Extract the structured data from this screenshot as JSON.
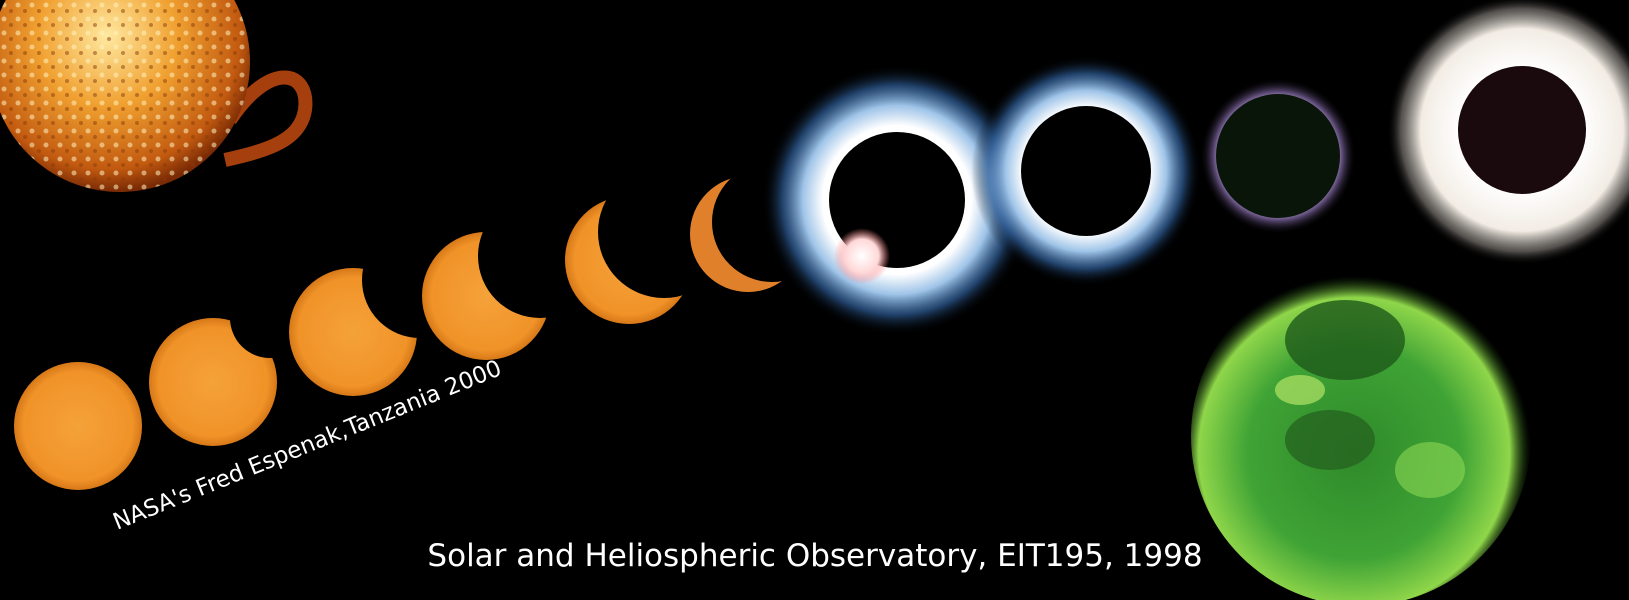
{
  "captions": {
    "photographer": "NASA's Fred Espenak,Tanzania 2000",
    "observatory": "Solar and Heliospheric Observatory, EIT195, 1998"
  }
}
